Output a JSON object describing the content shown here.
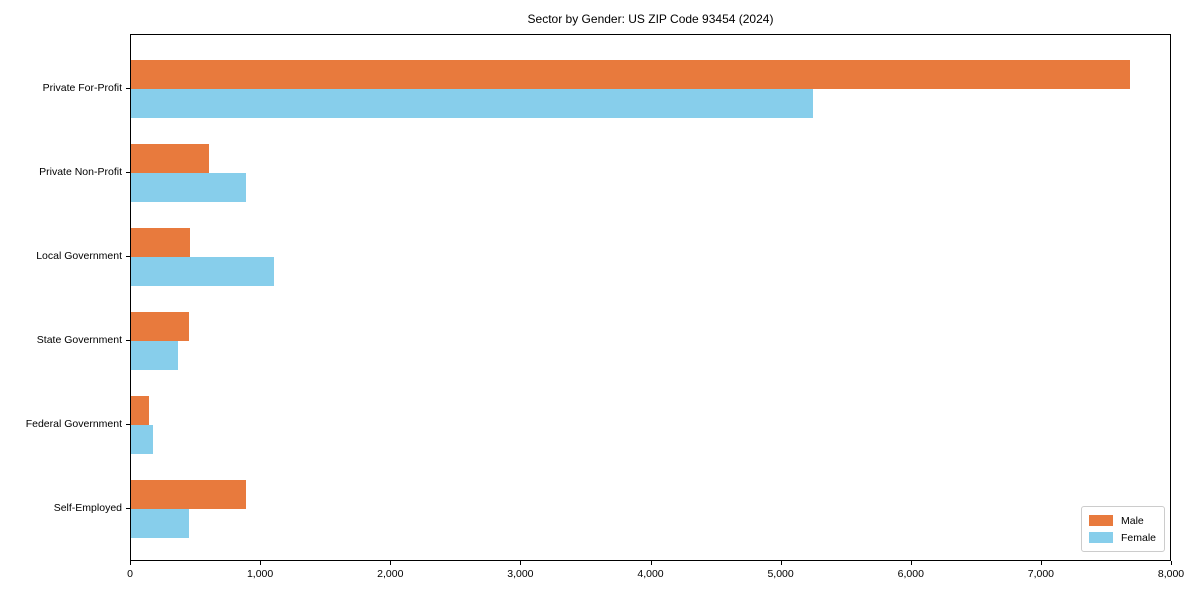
{
  "title": "Sector by Gender: US ZIP Code 93454 (2024)",
  "chart_data": {
    "type": "bar",
    "orientation": "horizontal",
    "title": "Sector by Gender: US ZIP Code 93454 (2024)",
    "categories": [
      "Private For-Profit",
      "Private Non-Profit",
      "Local Government",
      "State Government",
      "Federal Government",
      "Self-Employed"
    ],
    "series": [
      {
        "name": "Male",
        "color": "#e87a3d",
        "values": [
          7680,
          600,
          455,
          445,
          140,
          885
        ]
      },
      {
        "name": "Female",
        "color": "#87ceeb",
        "values": [
          5240,
          885,
          1100,
          360,
          170,
          445
        ]
      }
    ],
    "xlabel": "",
    "ylabel": "",
    "xlim": [
      0,
      8000
    ],
    "xticks": [
      0,
      1000,
      2000,
      3000,
      4000,
      5000,
      6000,
      7000,
      8000
    ],
    "xtick_labels": [
      "0",
      "1,000",
      "2,000",
      "3,000",
      "4,000",
      "5,000",
      "6,000",
      "7,000",
      "8,000"
    ],
    "grid": false,
    "legend_position": "lower right",
    "plot_background": "#ffffff",
    "spine_color": "#000000"
  }
}
